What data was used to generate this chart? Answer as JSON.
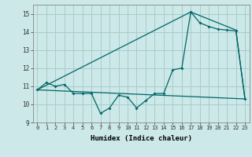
{
  "xlabel": "Humidex (Indice chaleur)",
  "ylabel": "",
  "background_color": "#cce8e8",
  "grid_color": "#aacccc",
  "line_color": "#006666",
  "xlim": [
    -0.5,
    23.5
  ],
  "ylim": [
    9,
    15.5
  ],
  "xticks": [
    0,
    1,
    2,
    3,
    4,
    5,
    6,
    7,
    8,
    9,
    10,
    11,
    12,
    13,
    14,
    15,
    16,
    17,
    18,
    19,
    20,
    21,
    22,
    23
  ],
  "yticks": [
    9,
    10,
    11,
    12,
    13,
    14,
    15
  ],
  "line1_x": [
    0,
    1,
    2,
    3,
    4,
    5,
    6,
    7,
    8,
    9,
    10,
    11,
    12,
    13,
    14,
    15,
    16,
    17,
    18,
    19,
    20,
    21,
    22,
    23
  ],
  "line1_y": [
    10.8,
    11.2,
    11.0,
    11.1,
    10.6,
    10.6,
    10.6,
    9.5,
    9.8,
    10.5,
    10.4,
    9.8,
    10.2,
    10.6,
    10.6,
    11.9,
    12.0,
    15.1,
    14.5,
    14.3,
    14.15,
    14.1,
    14.05,
    10.3
  ],
  "line2_x": [
    0,
    23
  ],
  "line2_y": [
    10.8,
    10.3
  ],
  "line3_x": [
    0,
    17,
    22,
    23
  ],
  "line3_y": [
    10.8,
    15.1,
    14.1,
    10.3
  ]
}
